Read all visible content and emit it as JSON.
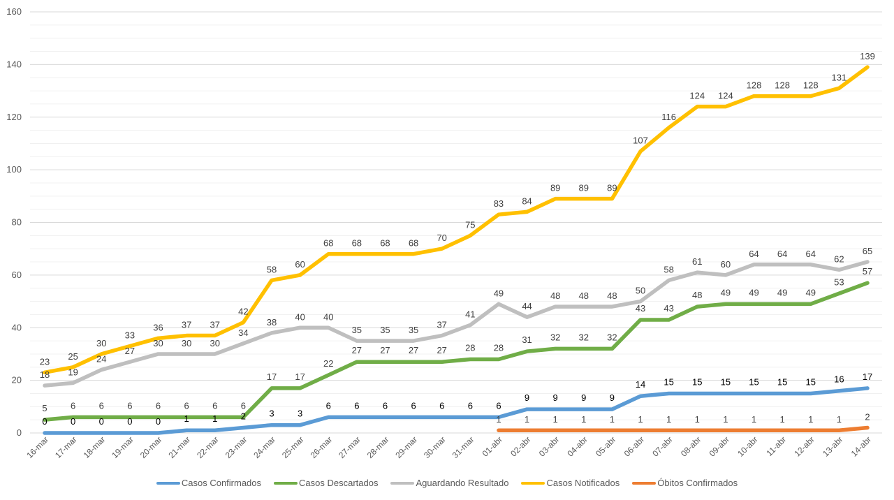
{
  "chart_data": {
    "type": "line",
    "title": "",
    "xlabel": "",
    "ylabel": "",
    "ylim": [
      0,
      160
    ],
    "y_ticks": [
      0,
      20,
      40,
      60,
      80,
      100,
      120,
      140,
      160
    ],
    "grid": true,
    "legend_position": "bottom",
    "categories": [
      "16-mar",
      "17-mar",
      "18-mar",
      "19-mar",
      "20-mar",
      "21-mar",
      "22-mar",
      "23-mar",
      "24-mar",
      "25-mar",
      "26-mar",
      "27-mar",
      "28-mar",
      "29-mar",
      "30-mar",
      "31-mar",
      "01-abr",
      "02-abr",
      "03-abr",
      "04-abr",
      "05-abr",
      "06-abr",
      "07-abr",
      "08-abr",
      "09-abr",
      "10-abr",
      "11-abr",
      "12-abr",
      "13-abr",
      "14-abr"
    ],
    "series": [
      {
        "name": "Casos Confirmados",
        "color": "#5b9bd5",
        "label_color": "#000000",
        "values": [
          0,
          0,
          0,
          0,
          0,
          1,
          1,
          2,
          3,
          3,
          6,
          6,
          6,
          6,
          6,
          6,
          6,
          9,
          9,
          9,
          9,
          14,
          15,
          15,
          15,
          15,
          15,
          15,
          16,
          17
        ]
      },
      {
        "name": "Casos Descartados",
        "color": "#70ad47",
        "label_color": "#404040",
        "values": [
          5,
          6,
          6,
          6,
          6,
          6,
          6,
          6,
          17,
          17,
          22,
          27,
          27,
          27,
          27,
          28,
          28,
          31,
          32,
          32,
          32,
          43,
          43,
          48,
          49,
          49,
          49,
          49,
          53,
          57
        ]
      },
      {
        "name": "Aguardando Resultado",
        "color": "#bfbfbf",
        "label_color": "#404040",
        "values": [
          18,
          19,
          24,
          27,
          30,
          30,
          30,
          34,
          38,
          40,
          40,
          35,
          35,
          35,
          37,
          41,
          49,
          44,
          48,
          48,
          48,
          50,
          58,
          61,
          60,
          64,
          64,
          64,
          62,
          65
        ]
      },
      {
        "name": "Casos Notificados",
        "color": "#ffc000",
        "label_color": "#404040",
        "values": [
          23,
          25,
          30,
          33,
          36,
          37,
          37,
          42,
          58,
          60,
          68,
          68,
          68,
          68,
          70,
          75,
          83,
          84,
          89,
          89,
          89,
          107,
          116,
          124,
          124,
          128,
          128,
          128,
          131,
          139
        ]
      },
      {
        "name": "Óbitos Confirmados",
        "color": "#ed7d31",
        "label_color": "#404040",
        "values": [
          null,
          null,
          null,
          null,
          null,
          null,
          null,
          null,
          null,
          null,
          null,
          null,
          null,
          null,
          null,
          null,
          1,
          1,
          1,
          1,
          1,
          1,
          1,
          1,
          1,
          1,
          1,
          1,
          1,
          2
        ]
      }
    ]
  }
}
